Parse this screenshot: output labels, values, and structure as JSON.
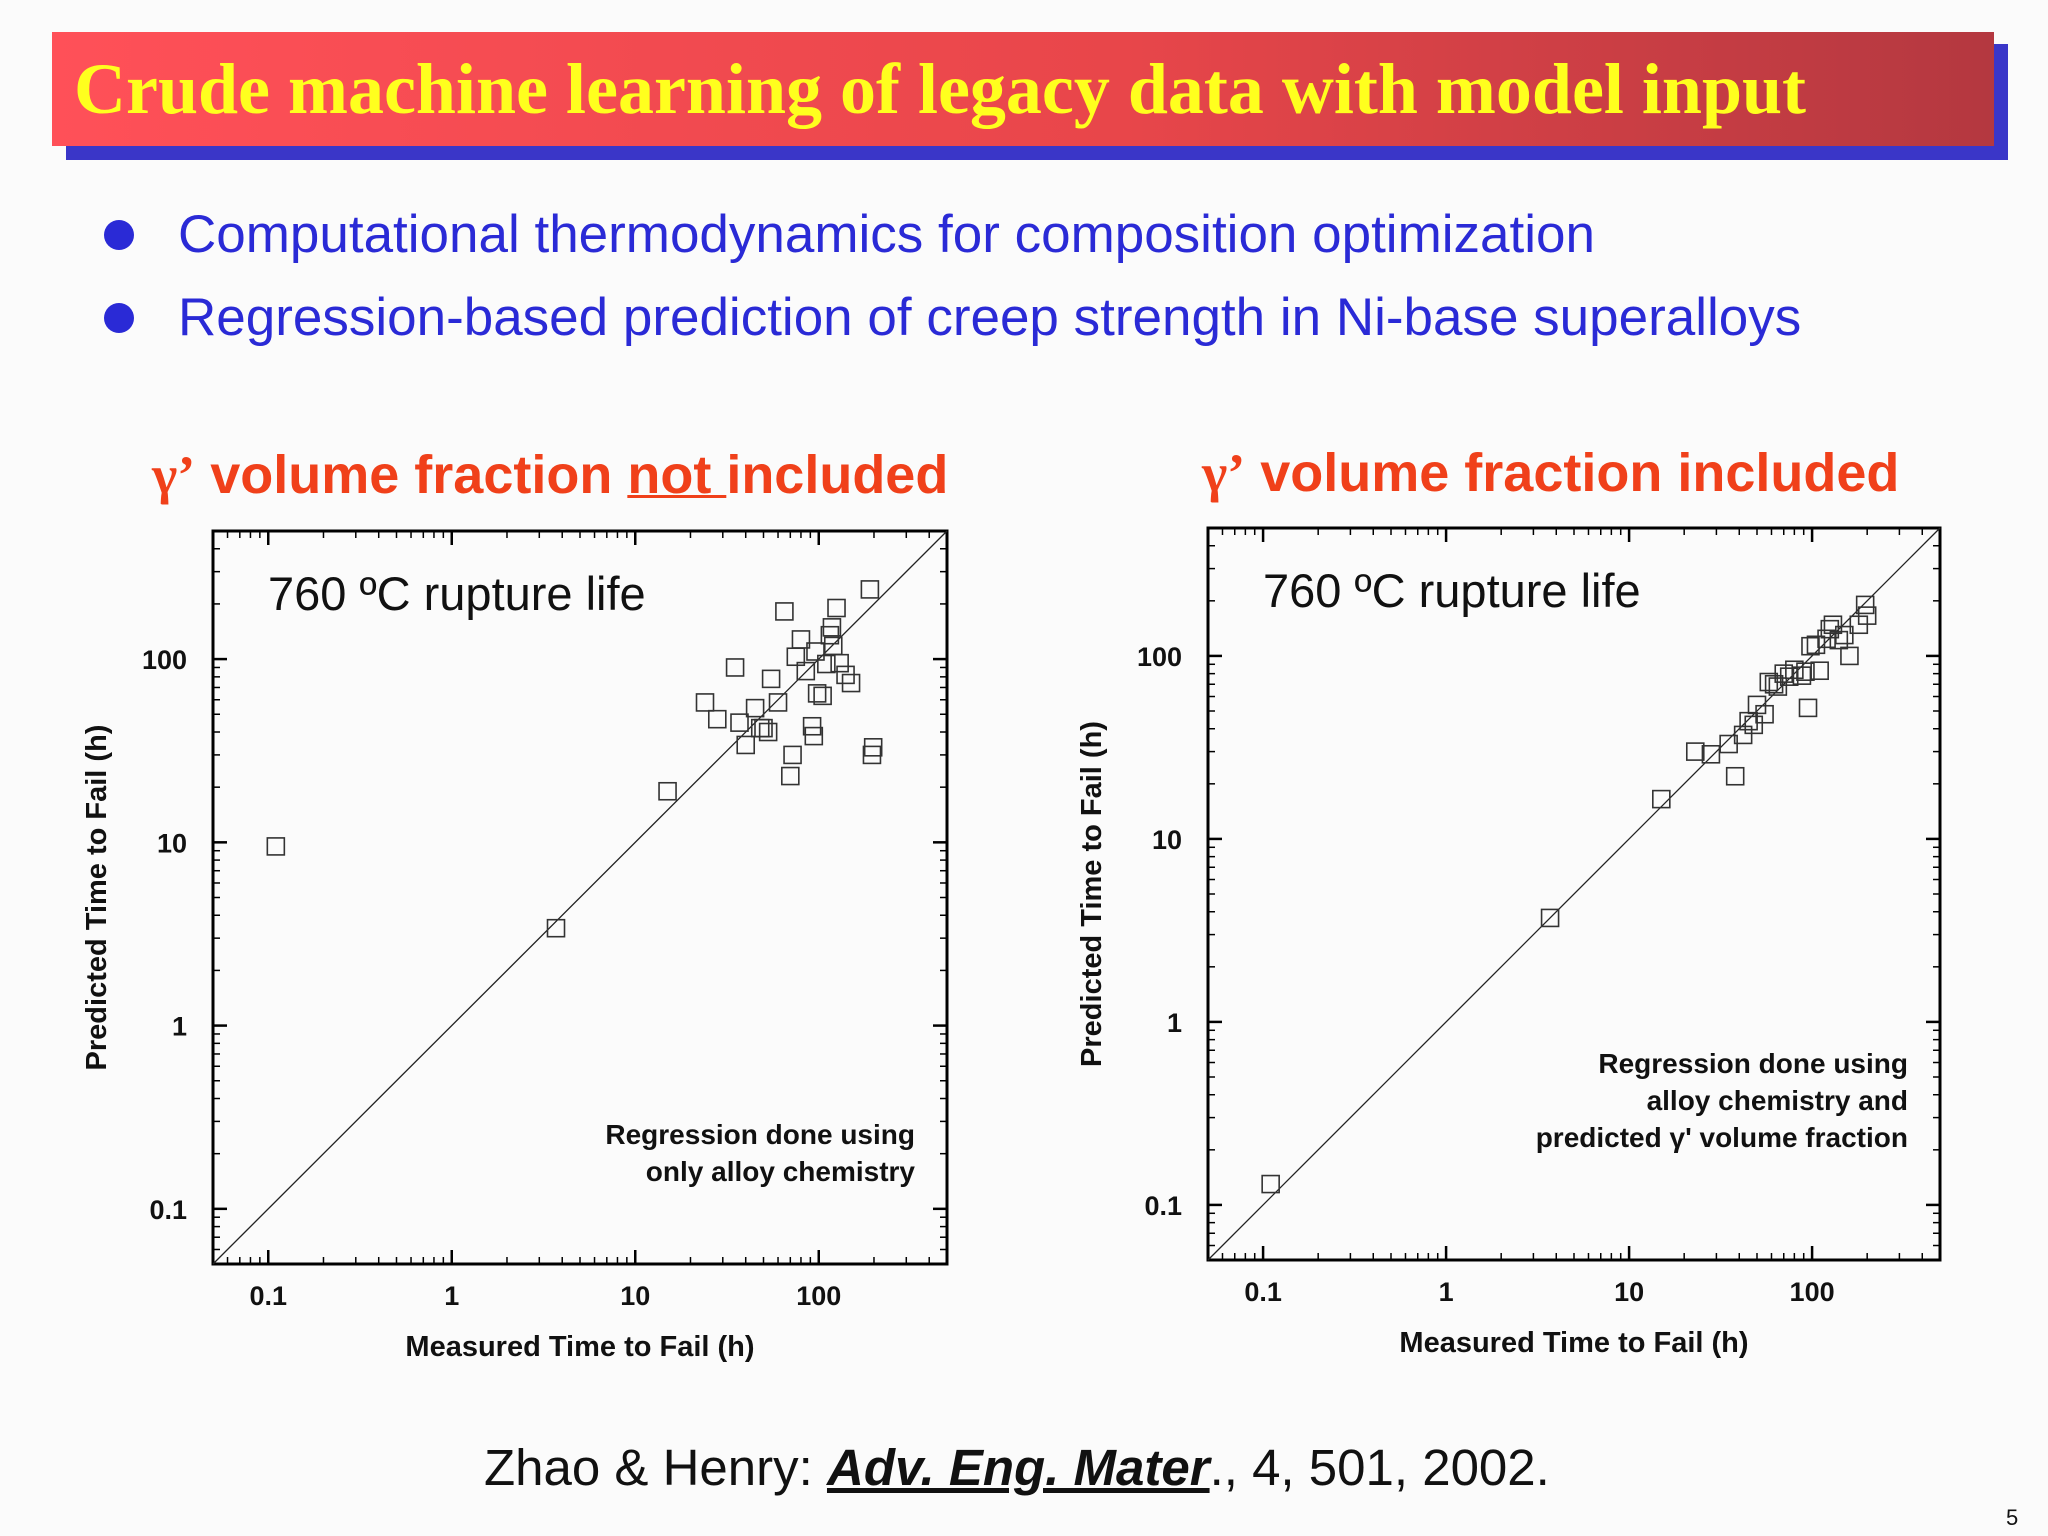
{
  "slide": {
    "title": "Crude machine learning of legacy data with model input",
    "bullets": [
      "Computational thermodynamics for composition optimization",
      "Regression-based prediction of creep strength in Ni-base superalloys"
    ],
    "left_heading": {
      "gamma": "γ’",
      "pre": " volume fraction ",
      "underlined": "not ",
      "post": "included"
    },
    "right_heading": {
      "gamma": "γ’",
      "text": " volume fraction included"
    },
    "citation": {
      "authors": "Zhao & Henry: ",
      "journal": "Adv. Eng. Mater",
      "rest": "., 4, 501, 2002."
    },
    "page_number": "5",
    "colors": {
      "title_text": "#ffff1e",
      "title_bar": "#e8464a",
      "bullet": "#2a2ad6",
      "heading": "#f0401a"
    }
  },
  "chart_data": [
    {
      "type": "scatter",
      "scale": "log-log",
      "annotation": "760 ºC rupture life",
      "note_lines": [
        "Regression done using",
        "only alloy chemistry"
      ],
      "xlabel": "Measured Time to Fail (h)",
      "ylabel": "Predicted Time to Fail (h)",
      "xlim": [
        0.05,
        500
      ],
      "ylim": [
        0.05,
        500
      ],
      "xticks": [
        "0.1",
        "1",
        "10",
        "100"
      ],
      "yticks": [
        "0.1",
        "1",
        "10",
        "100"
      ],
      "marker": "open-square",
      "reference_line": "y = x",
      "points": [
        [
          0.11,
          9.5
        ],
        [
          3.7,
          3.4
        ],
        [
          15,
          19
        ],
        [
          24,
          58
        ],
        [
          28,
          47
        ],
        [
          35,
          90
        ],
        [
          37,
          45
        ],
        [
          40,
          34
        ],
        [
          45,
          54
        ],
        [
          48,
          42
        ],
        [
          50,
          42
        ],
        [
          53,
          40
        ],
        [
          55,
          78
        ],
        [
          60,
          58
        ],
        [
          65,
          182
        ],
        [
          70,
          23
        ],
        [
          72,
          30
        ],
        [
          75,
          103
        ],
        [
          80,
          128
        ],
        [
          85,
          86
        ],
        [
          92,
          43
        ],
        [
          94,
          38
        ],
        [
          96,
          110
        ],
        [
          98,
          65
        ],
        [
          105,
          63
        ],
        [
          110,
          94
        ],
        [
          115,
          135
        ],
        [
          118,
          149
        ],
        [
          120,
          118
        ],
        [
          125,
          190
        ],
        [
          130,
          95
        ],
        [
          140,
          82
        ],
        [
          150,
          74
        ],
        [
          190,
          240
        ],
        [
          195,
          30
        ],
        [
          198,
          33
        ]
      ]
    },
    {
      "type": "scatter",
      "scale": "log-log",
      "annotation": "760 ºC rupture life",
      "note_lines": [
        "Regression done using",
        "alloy chemistry and",
        "predicted γ' volume fraction"
      ],
      "xlabel": "Measured Time to Fail (h)",
      "ylabel": "Predicted Time to Fail (h)",
      "xlim": [
        0.05,
        500
      ],
      "ylim": [
        0.05,
        500
      ],
      "xticks": [
        "0.1",
        "1",
        "10",
        "100"
      ],
      "yticks": [
        "0.1",
        "1",
        "10",
        "100"
      ],
      "marker": "open-square",
      "reference_line": "y = x",
      "points": [
        [
          0.11,
          0.13
        ],
        [
          3.7,
          3.7
        ],
        [
          15,
          16.5
        ],
        [
          23,
          30
        ],
        [
          28,
          29
        ],
        [
          35,
          33
        ],
        [
          38,
          22
        ],
        [
          42,
          37
        ],
        [
          45,
          44
        ],
        [
          48,
          42
        ],
        [
          50,
          54
        ],
        [
          55,
          48
        ],
        [
          58,
          72
        ],
        [
          62,
          70
        ],
        [
          65,
          68
        ],
        [
          70,
          80
        ],
        [
          75,
          77
        ],
        [
          80,
          84
        ],
        [
          88,
          78
        ],
        [
          92,
          82
        ],
        [
          95,
          52
        ],
        [
          98,
          113
        ],
        [
          105,
          115
        ],
        [
          110,
          83
        ],
        [
          120,
          124
        ],
        [
          125,
          140
        ],
        [
          130,
          148
        ],
        [
          140,
          122
        ],
        [
          150,
          130
        ],
        [
          160,
          100
        ],
        [
          180,
          148
        ],
        [
          195,
          190
        ],
        [
          200,
          166
        ]
      ]
    }
  ]
}
